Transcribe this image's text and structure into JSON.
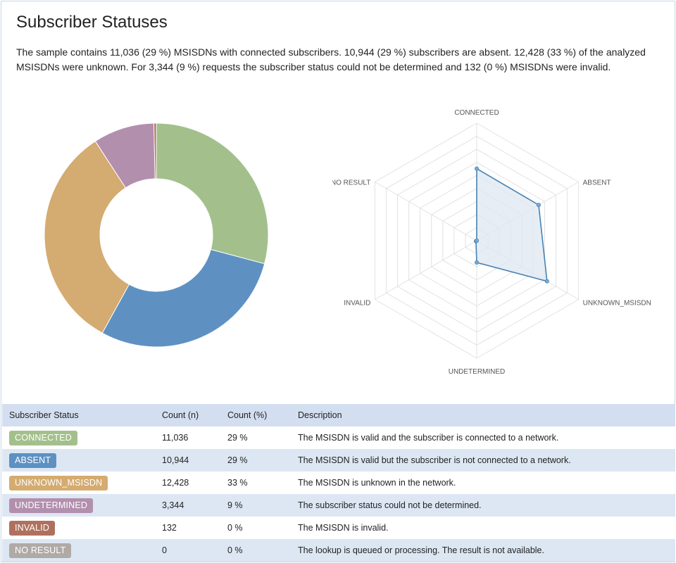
{
  "page": {
    "title": "Subscriber Statuses",
    "summary": "The sample contains 11,036 (29 %) MSISDNs with connected subscribers. 10,944 (29 %) subscribers are absent. 12,428 (33 %) of the analyzed MSISDNs were unknown. For 3,344 (9 %) requests the subscriber status could not be determined and 132 (0 %) MSISDNs were invalid."
  },
  "chart_data": [
    {
      "type": "pie",
      "variant": "donut",
      "categories": [
        "CONNECTED",
        "ABSENT",
        "UNKNOWN_MSISDN",
        "UNDETERMINED",
        "INVALID",
        "NO RESULT"
      ],
      "values": [
        11036,
        10944,
        12428,
        3344,
        132,
        0
      ],
      "colors": [
        "#a3c08c",
        "#5e91c2",
        "#d4ab70",
        "#b38fae",
        "#b0705e",
        "#b0aaa6"
      ]
    },
    {
      "type": "radar",
      "categories": [
        "CONNECTED",
        "ABSENT",
        "UNKNOWN_MSISDN",
        "UNDETERMINED",
        "INVALID",
        "NO RESULT"
      ],
      "values": [
        11036,
        10944,
        12428,
        3344,
        132,
        0
      ],
      "rmax": 18000,
      "rings": 9,
      "grid": true,
      "line_color": "#4682b4",
      "fill_color": "#dde7f1"
    }
  ],
  "table": {
    "headers": [
      "Subscriber Status",
      "Count (n)",
      "Count (%)",
      "Description"
    ],
    "rows": [
      {
        "status": "CONNECTED",
        "color": "#a3c08c",
        "count": "11,036",
        "percent": "29 %",
        "description": "The MSISDN is valid and the subscriber is connected to a network."
      },
      {
        "status": "ABSENT",
        "color": "#5e91c2",
        "count": "10,944",
        "percent": "29 %",
        "description": "The MSISDN is valid but the subscriber is not connected to a network."
      },
      {
        "status": "UNKNOWN_MSISDN",
        "color": "#d4ab70",
        "count": "12,428",
        "percent": "33 %",
        "description": "The MSISDN is unknown in the network."
      },
      {
        "status": "UNDETERMINED",
        "color": "#b38fae",
        "count": "3,344",
        "percent": "9 %",
        "description": "The subscriber status could not be determined."
      },
      {
        "status": "INVALID",
        "color": "#b0705e",
        "count": "132",
        "percent": "0 %",
        "description": "The MSISDN is invalid."
      },
      {
        "status": "NO RESULT",
        "color": "#b0aaa6",
        "count": "0",
        "percent": "0 %",
        "description": "The lookup is queued or processing. The result is not available."
      }
    ]
  }
}
